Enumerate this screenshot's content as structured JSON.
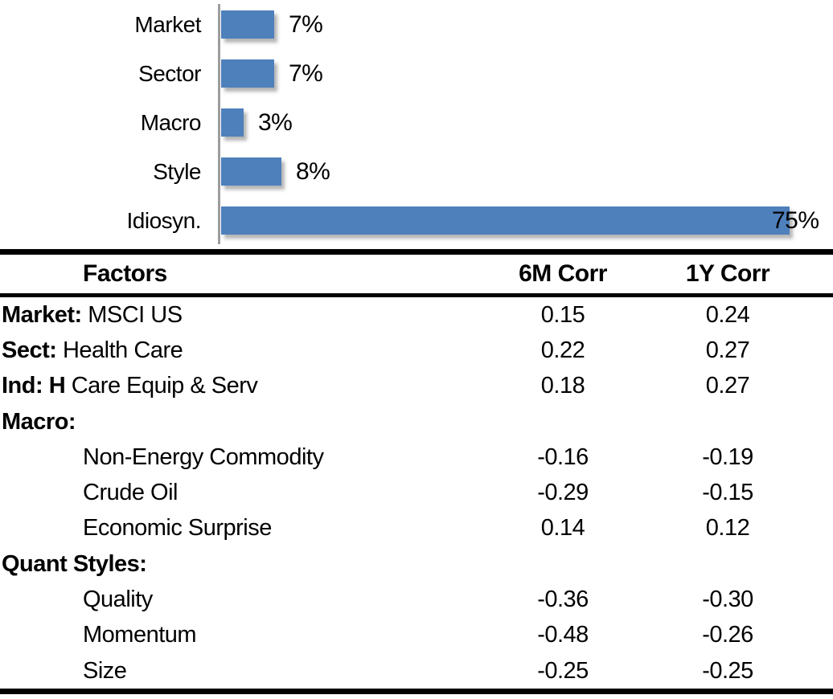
{
  "chart_data": {
    "type": "bar",
    "orientation": "horizontal",
    "title": "",
    "xlabel": "",
    "ylabel": "",
    "categories": [
      "Market",
      "Sector",
      "Macro",
      "Style",
      "Idiosyn."
    ],
    "values": [
      7,
      7,
      3,
      8,
      75
    ],
    "value_labels": [
      "7%",
      "7%",
      "3%",
      "8%",
      "75%"
    ],
    "xlim": [
      0,
      79
    ],
    "grid": "off",
    "legend": "none",
    "bar_color": "#4e80bc",
    "axis_color": "#9d9d9d"
  },
  "table": {
    "headers": [
      "Factors",
      "6M Corr",
      "1Y Corr"
    ],
    "rows": [
      {
        "prefix": "Market:",
        "name": "MSCI US",
        "indent": false,
        "corr_6m": "0.15",
        "corr_1y": "0.24"
      },
      {
        "prefix": "Sect:",
        "name": "Health Care",
        "indent": false,
        "corr_6m": "0.22",
        "corr_1y": "0.27"
      },
      {
        "prefix": "Ind: H",
        "name": "Care Equip & Serv",
        "indent": false,
        "corr_6m": "0.18",
        "corr_1y": "0.27"
      },
      {
        "prefix": "Macro:",
        "name": "",
        "indent": false,
        "corr_6m": "",
        "corr_1y": ""
      },
      {
        "prefix": "",
        "name": "Non-Energy Commodity",
        "indent": true,
        "corr_6m": "-0.16",
        "corr_1y": "-0.19"
      },
      {
        "prefix": "",
        "name": "Crude Oil",
        "indent": true,
        "corr_6m": "-0.29",
        "corr_1y": "-0.15"
      },
      {
        "prefix": "",
        "name": "Economic Surprise",
        "indent": true,
        "corr_6m": "0.14",
        "corr_1y": "0.12"
      },
      {
        "prefix": "Quant Styles:",
        "name": "",
        "indent": false,
        "corr_6m": "",
        "corr_1y": ""
      },
      {
        "prefix": "",
        "name": "Quality",
        "indent": true,
        "corr_6m": "-0.36",
        "corr_1y": "-0.30"
      },
      {
        "prefix": "",
        "name": "Momentum",
        "indent": true,
        "corr_6m": "-0.48",
        "corr_1y": "-0.26"
      },
      {
        "prefix": "",
        "name": "Size",
        "indent": true,
        "corr_6m": "-0.25",
        "corr_1y": "-0.25"
      }
    ]
  }
}
